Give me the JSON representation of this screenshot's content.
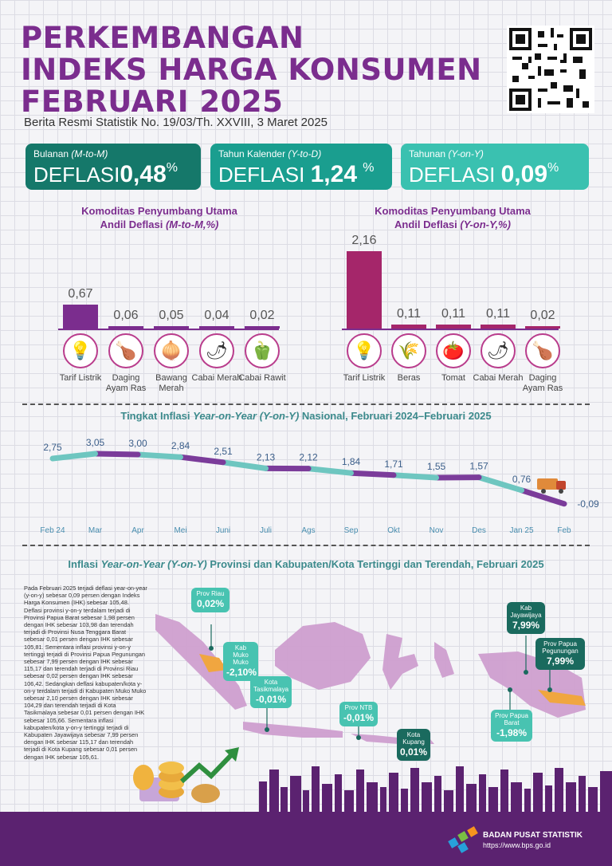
{
  "title": {
    "line1": "PERKEMBANGAN",
    "line2": "INDEKS HARGA KONSUMEN",
    "line3": "FEBRUARI 2025",
    "subtitle": "Berita Resmi Statistik No. 19/03/Th. XXVIII, 3 Maret 2025"
  },
  "cards": [
    {
      "label": "Bulanan",
      "label_italic": "(M-to-M)",
      "word": "DEFLASI",
      "value": "0,48",
      "unit": "%"
    },
    {
      "label": "Tahun Kalender",
      "label_italic": "(Y-to-D)",
      "word": "DEFLASI",
      "value": "1,24",
      "unit": "%"
    },
    {
      "label": "Tahunan",
      "label_italic": "(Y-on-Y)",
      "word": "DEFLASI",
      "value": "0,09",
      "unit": "%"
    }
  ],
  "mtm": {
    "title1": "Komoditas Penyumbang Utama",
    "title2a": "Andil Deflasi ",
    "title2i": "(M-to-M,%)",
    "items": [
      {
        "label": "0,67",
        "value": 0.67,
        "name": "Tarif Listrik",
        "icon": "bulb-icon",
        "glyph": "💡"
      },
      {
        "label": "0,06",
        "value": 0.06,
        "name": "Daging Ayam Ras",
        "icon": "chicken-icon",
        "glyph": "🍗"
      },
      {
        "label": "0,05",
        "value": 0.05,
        "name": "Bawang Merah",
        "icon": "onion-icon",
        "glyph": "🧅"
      },
      {
        "label": "0,04",
        "value": 0.04,
        "name": "Cabai Merah",
        "icon": "red-chili-icon",
        "glyph": "🌶"
      },
      {
        "label": "0,02",
        "value": 0.02,
        "name": "Cabai Rawit",
        "icon": "green-chili-icon",
        "glyph": "🫑"
      }
    ]
  },
  "yoy": {
    "title1": "Komoditas Penyumbang Utama",
    "title2a": "Andil Deflasi ",
    "title2i": "(Y-on-Y,%)",
    "items": [
      {
        "label": "2,16",
        "value": 2.16,
        "name": "Tarif Listrik",
        "icon": "bulb-icon",
        "glyph": "💡"
      },
      {
        "label": "0,11",
        "value": 0.11,
        "name": "Beras",
        "icon": "rice-sack-icon",
        "glyph": "🌾"
      },
      {
        "label": "0,11",
        "value": 0.11,
        "name": "Tomat",
        "icon": "tomato-icon",
        "glyph": "🍅"
      },
      {
        "label": "0,11",
        "value": 0.11,
        "name": "Cabai Merah",
        "icon": "red-chili-icon",
        "glyph": "🌶"
      },
      {
        "label": "0,02",
        "value": 0.02,
        "name": "Daging Ayam Ras",
        "icon": "chicken-icon",
        "glyph": "🍗"
      }
    ]
  },
  "chart_data": {
    "type": "line",
    "title_pre": "Tingkat Inflasi ",
    "title_italic": "Year-on-Year (Y-on-Y)",
    "title_post": " Nasional, Februari 2024–Februari 2025",
    "categories": [
      "Feb 24",
      "Mar",
      "Apr",
      "Mei",
      "Juni",
      "Juli",
      "Ags",
      "Sep",
      "Okt",
      "Nov",
      "Des",
      "Jan 25",
      "Feb"
    ],
    "values": [
      2.75,
      3.05,
      3.0,
      2.84,
      2.51,
      2.13,
      2.12,
      1.84,
      1.71,
      1.55,
      1.57,
      0.76,
      -0.09
    ],
    "labels": [
      "2,75",
      "3,05",
      "3,00",
      "2,84",
      "2,51",
      "2,13",
      "2,12",
      "1,84",
      "1,71",
      "1,55",
      "1,57",
      "0,76",
      "-0,09"
    ],
    "ylim": [
      -0.5,
      3.5
    ],
    "colors": [
      "#6ec6c0",
      "#7b3c9a"
    ]
  },
  "map": {
    "title_pre": "Inflasi ",
    "title_italic": "Year-on-Year (Y-on-Y)",
    "title_post": " Provinsi dan Kabupaten/Kota Tertinggi dan Terendah, Februari 2025",
    "paragraph": "Pada Februari 2025 terjadi deflasi year-on-year (y-on-y) sebesar 0,09 persen dengan Indeks Harga Konsumen (IHK) sebesar 105,48. Deflasi provinsi y-on-y terdalam terjadi di Provinsi Papua Barat sebesar 1,98 persen dengan IHK sebesar 103,98 dan terendah terjadi di Provinsi Nusa Tenggara Barat sebesar 0,01 persen dengan IHK sebesar 105,81. Sementara inflasi provinsi y-on-y tertinggi terjadi di Provinsi Papua Pegunungan sebesar 7,99 persen dengan IHK sebesar 115,17 dan terendah terjadi di Provinsi Riau sebesar 0,02 persen dengan IHK sebesar 106,42. Sedangkan deflasi kabupaten/kota y-on-y terdalam terjadi di Kabupaten Muko Muko sebesar 2,10 persen dengan IHK sebesar 104,29 dan terendah terjadi di Kota Tasikmalaya sebesar 0,01 persen dengan IHK sebesar 105,66. Sementara inflasi kabupaten/kota y-on-y tertinggi terjadi di Kabupaten Jayawijaya sebesar 7,99 persen dengan IHK sebesar 115,17 dan terendah terjadi di Kota Kupang sebesar 0,01 persen dengan IHK sebesar 105,61.",
    "pins": [
      {
        "name": "Prov Riau",
        "value": "0,02%"
      },
      {
        "name": "Kab Muko Muko",
        "value": "-2,10%"
      },
      {
        "name": "Kota Tasikmalaya",
        "value": "-0,01%"
      },
      {
        "name": "Prov NTB",
        "value": "-0,01%"
      },
      {
        "name": "Kota Kupang",
        "value": "0,01%"
      },
      {
        "name": "Kab Jayawijaya",
        "value": "7,99%"
      },
      {
        "name": "Prov Papua Pegunungan",
        "value": "7,99%"
      },
      {
        "name": "Prov Papua Barat",
        "value": "-1,98%"
      }
    ]
  },
  "footer": {
    "org": "BADAN PUSAT STATISTIK",
    "url": "https://www.bps.go.id"
  },
  "colors": {
    "purple": "#7b2d8e",
    "teal_dark": "#15786a",
    "teal_mid": "#1a9e8f",
    "teal_light": "#3ac1b0",
    "magenta": "#a5266a"
  }
}
